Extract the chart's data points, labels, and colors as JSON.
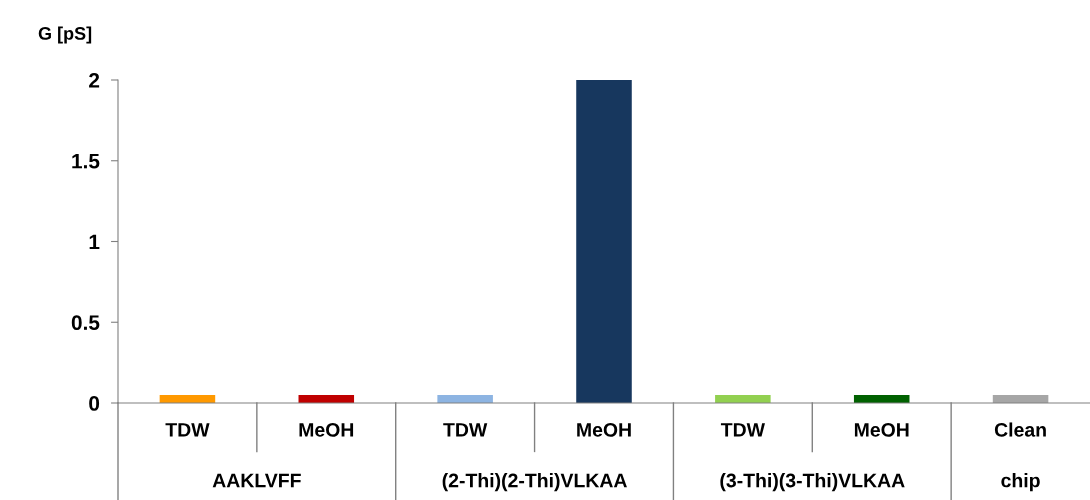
{
  "chart_data": {
    "type": "bar",
    "ylabel": "G [pS]",
    "categories": [
      "TDW",
      "MeOH",
      "TDW",
      "MeOH",
      "TDW",
      "MeOH",
      "Clean"
    ],
    "values": [
      0.05,
      0.05,
      0.05,
      2.0,
      0.05,
      0.05,
      0.05
    ],
    "colors": [
      "#ff9900",
      "#c00000",
      "#8db4e2",
      "#17375e",
      "#92d050",
      "#006100",
      "#a6a6a6"
    ],
    "annotations": [
      "AAKLVFF",
      "(2-Thi)(2-Thi)VLKAA",
      "(3-Thi)(3-Thi)VLKAA",
      "chip"
    ],
    "ylim": [
      0,
      2
    ],
    "yticks": [
      0,
      0.5,
      1,
      1.5,
      2
    ],
    "grid": false,
    "legend": false
  }
}
